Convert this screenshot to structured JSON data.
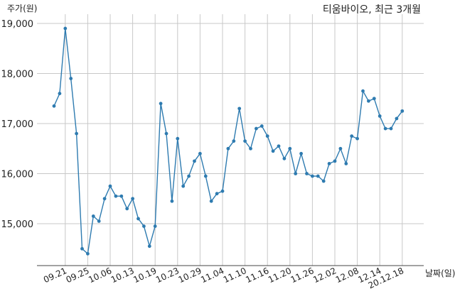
{
  "chart_data": {
    "type": "line",
    "title": "티움바이오, 최근 3개월",
    "ylabel": "주가(원)",
    "xlabel": "날짜(일)",
    "ylim": [
      14200,
      19200
    ],
    "yticks": [
      15000,
      16000,
      17000,
      18000,
      19000
    ],
    "ytick_labels": [
      "15,000",
      "16,000",
      "17,000",
      "18,000",
      "19,000"
    ],
    "grid": true,
    "line_color": "#2e7bb0",
    "xtick_labels": [
      "09.21",
      "09.25",
      "10.06",
      "10.13",
      "10.19",
      "10.23",
      "10.29",
      "11.04",
      "11.10",
      "11.16",
      "11.20",
      "11.26",
      "12.02",
      "12.08",
      "12.14",
      "20.12.18"
    ],
    "xtick_indices": [
      2,
      6,
      10,
      14,
      18,
      22,
      26,
      30,
      34,
      38,
      42,
      46,
      50,
      54,
      58,
      62
    ],
    "series": [
      {
        "values": [
          17350,
          17600,
          18900,
          17900,
          16800,
          14500,
          14400,
          15150,
          15050,
          15500,
          15750,
          15550,
          15550,
          15300,
          15500,
          15100,
          14950,
          14550,
          14950,
          17400,
          16800,
          15450,
          16700,
          15750,
          15950,
          16250,
          16400,
          15950,
          15450,
          15600,
          15650,
          16500,
          16650,
          17300,
          16650,
          16500,
          16900,
          16950,
          16750,
          16450,
          16550,
          16300,
          16500,
          16000,
          16400,
          16000,
          15950,
          15950,
          15850,
          16200,
          16250,
          16500,
          16200,
          16750,
          16700,
          17650,
          17450,
          17500,
          17150,
          16900,
          16900,
          17100,
          17250
        ]
      }
    ]
  }
}
